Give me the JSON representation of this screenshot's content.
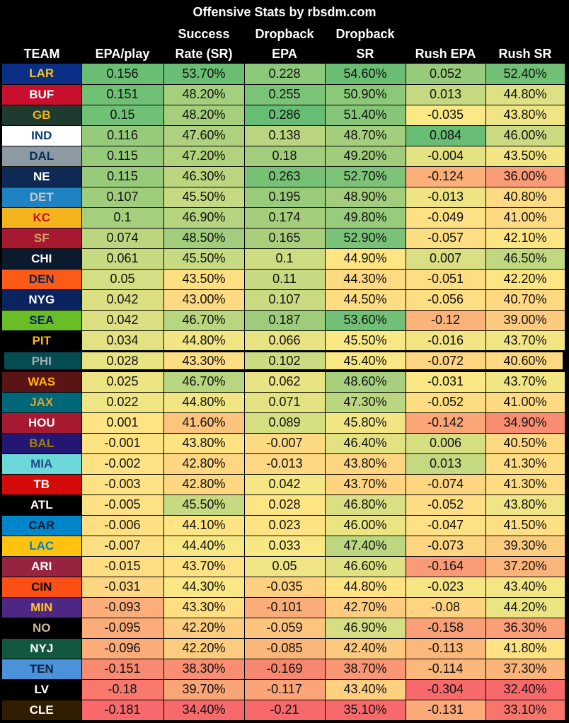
{
  "title": "Offensive Stats by rbsdm.com",
  "headers": [
    {
      "line1": "",
      "line2": "TEAM"
    },
    {
      "line1": "",
      "line2": "EPA/play"
    },
    {
      "line1": "Success",
      "line2": "Rate (SR)"
    },
    {
      "line1": "Dropback",
      "line2": "EPA"
    },
    {
      "line1": "Dropback",
      "line2": "SR"
    },
    {
      "line1": "",
      "line2": "Rush EPA"
    },
    {
      "line1": "",
      "line2": "Rush SR"
    }
  ],
  "highlighted_team": "PHI",
  "rows": [
    {
      "team": "LAR",
      "bg": "#0B2F86",
      "fg": "#F4C320",
      "cells": [
        "0.156",
        "53.70%",
        "0.228",
        "54.60%",
        "0.052",
        "52.40%"
      ],
      "colors": [
        "#6ABE74",
        "#6ABE74",
        "#8CC87A",
        "#6ABE74",
        "#97CB7B",
        "#72C076"
      ]
    },
    {
      "team": "BUF",
      "bg": "#C8102E",
      "fg": "#FFFFFF",
      "cells": [
        "0.151",
        "48.20%",
        "0.255",
        "50.90%",
        "0.013",
        "44.80%"
      ],
      "colors": [
        "#6FBF75",
        "#A6CF7D",
        "#7BC377",
        "#8BC87A",
        "#C5D981",
        "#DDE083"
      ]
    },
    {
      "team": "GB",
      "bg": "#1F3A2E",
      "fg": "#F4B41A",
      "cells": [
        "0.15",
        "48.20%",
        "0.286",
        "51.40%",
        "-0.035",
        "43.80%"
      ],
      "colors": [
        "#70C075",
        "#A6CF7D",
        "#67BD73",
        "#86C679",
        "#FBE985",
        "#F0E584"
      ]
    },
    {
      "team": "IND",
      "bg": "#FFFFFF",
      "fg": "#0B3B80",
      "cells": [
        "0.116",
        "47.60%",
        "0.138",
        "48.70%",
        "0.084",
        "46.00%"
      ],
      "colors": [
        "#96CB7B",
        "#ADD17E",
        "#B9D57F",
        "#A5CE7C",
        "#66BD73",
        "#C9DA81"
      ]
    },
    {
      "team": "DAL",
      "bg": "#8E9AA2",
      "fg": "#0B2F5E",
      "cells": [
        "0.115",
        "47.20%",
        "0.18",
        "49.20%",
        "-0.004",
        "43.50%"
      ],
      "colors": [
        "#97CB7B",
        "#B2D37E",
        "#A1CD7C",
        "#A0CC7C",
        "#E5E283",
        "#F2E684"
      ]
    },
    {
      "team": "NE",
      "bg": "#0E2A54",
      "fg": "#FFFFFF",
      "cells": [
        "0.115",
        "46.30%",
        "0.263",
        "52.70%",
        "-0.124",
        "36.00%"
      ],
      "colors": [
        "#97CB7B",
        "#BCD680",
        "#76C176",
        "#7DC377",
        "#FBB079",
        "#F99B76"
      ]
    },
    {
      "team": "DET",
      "bg": "#1F82C3",
      "fg": "#BFC7CE",
      "cells": [
        "0.107",
        "45.50%",
        "0.195",
        "48.90%",
        "-0.013",
        "40.80%"
      ],
      "colors": [
        "#9FCD7C",
        "#C6DA81",
        "#99CB7B",
        "#A3CD7C",
        "#EEE484",
        "#FEDB82"
      ]
    },
    {
      "team": "KC",
      "bg": "#F6B41C",
      "fg": "#C8102E",
      "cells": [
        "0.1",
        "46.90%",
        "0.174",
        "49.80%",
        "-0.049",
        "41.00%"
      ],
      "colors": [
        "#A6CF7D",
        "#B5D47F",
        "#A4CE7C",
        "#98CB7B",
        "#FDE184",
        "#FEDB82"
      ]
    },
    {
      "team": "SF",
      "bg": "#A71930",
      "fg": "#C9A565",
      "cells": [
        "0.074",
        "48.50%",
        "0.165",
        "52.90%",
        "-0.057",
        "42.10%"
      ],
      "colors": [
        "#BCD680",
        "#A2CD7C",
        "#A9CF7D",
        "#7AC277",
        "#FEDE83",
        "#FEE583"
      ]
    },
    {
      "team": "CHI",
      "bg": "#0C1A2E",
      "fg": "#FFFFFF",
      "cells": [
        "0.061",
        "45.50%",
        "0.1",
        "44.90%",
        "0.007",
        "46.50%"
      ],
      "colors": [
        "#C8DA81",
        "#C6DA81",
        "#CDDB81",
        "#FEE583",
        "#D9DF82",
        "#C2D880"
      ]
    },
    {
      "team": "DEN",
      "bg": "#FB5B17",
      "fg": "#0B2351",
      "cells": [
        "0.05",
        "43.50%",
        "0.11",
        "44.30%",
        "-0.051",
        "42.20%"
      ],
      "colors": [
        "#D4DE82",
        "#FEE083",
        "#C7DA81",
        "#FEDB82",
        "#FEDD83",
        "#FEE583"
      ]
    },
    {
      "team": "NYG",
      "bg": "#0B2460",
      "fg": "#FFFFFF",
      "cells": [
        "0.042",
        "43.00%",
        "0.107",
        "44.50%",
        "-0.056",
        "40.70%"
      ],
      "colors": [
        "#DCE083",
        "#FEDB82",
        "#C9DA81",
        "#FEDD83",
        "#FEDE83",
        "#FED982"
      ]
    },
    {
      "team": "SEA",
      "bg": "#69BE28",
      "fg": "#0B2351",
      "cells": [
        "0.042",
        "46.70%",
        "0.187",
        "53.60%",
        "-0.12",
        "39.00%"
      ],
      "colors": [
        "#DCE083",
        "#B8D57F",
        "#9ECC7C",
        "#71C076",
        "#FCB37A",
        "#FDCB7F"
      ]
    },
    {
      "team": "PIT",
      "bg": "#000000",
      "fg": "#FFB612",
      "cells": [
        "0.034",
        "44.80%",
        "0.066",
        "45.50%",
        "-0.016",
        "43.70%"
      ],
      "colors": [
        "#E3E283",
        "#F2E684",
        "#E7E383",
        "#F9E884",
        "#F2E684",
        "#F1E584"
      ]
    },
    {
      "team": "PHI",
      "bg": "#064C53",
      "fg": "#A5ACAF",
      "cells": [
        "0.028",
        "43.30%",
        "0.102",
        "45.40%",
        "-0.072",
        "40.60%"
      ],
      "colors": [
        "#E9E483",
        "#FEDE83",
        "#CCDB81",
        "#FAE884",
        "#FED581",
        "#FED982"
      ]
    },
    {
      "team": "WAS",
      "bg": "#5A1414",
      "fg": "#FFB612",
      "cells": [
        "0.025",
        "46.70%",
        "0.062",
        "48.60%",
        "-0.031",
        "43.70%"
      ],
      "colors": [
        "#ECE483",
        "#B8D57F",
        "#E9E483",
        "#A7CF7D",
        "#F9E884",
        "#F1E584"
      ]
    },
    {
      "team": "JAX",
      "bg": "#006778",
      "fg": "#D7A22A",
      "cells": [
        "0.022",
        "44.80%",
        "0.071",
        "47.30%",
        "-0.052",
        "41.00%"
      ],
      "colors": [
        "#EFE584",
        "#F2E684",
        "#E3E283",
        "#BBD680",
        "#FEDD83",
        "#FEDB82"
      ]
    },
    {
      "team": "HOU",
      "bg": "#A71930",
      "fg": "#FFFFFF",
      "cells": [
        "0.001",
        "41.60%",
        "0.089",
        "45.80%",
        "-0.142",
        "34.90%"
      ],
      "colors": [
        "#FEE483",
        "#FDC47D",
        "#D6DE82",
        "#F1E584",
        "#FBA677",
        "#F98D72"
      ]
    },
    {
      "team": "BAL",
      "bg": "#241773",
      "fg": "#9E7C0C",
      "cells": [
        "-0.001",
        "43.80%",
        "-0.007",
        "46.40%",
        "0.006",
        "40.50%"
      ],
      "colors": [
        "#FEE383",
        "#FEE383",
        "#FEDB82",
        "#E3E283",
        "#D6DE82",
        "#FED882"
      ]
    },
    {
      "team": "MIA",
      "bg": "#6CD8DA",
      "fg": "#1F4E8C",
      "cells": [
        "-0.002",
        "42.80%",
        "-0.013",
        "43.80%",
        "0.013",
        "41.30%"
      ],
      "colors": [
        "#FEE283",
        "#FED782",
        "#FED882",
        "#FED581",
        "#C5D981",
        "#FEDC82"
      ]
    },
    {
      "team": "TB",
      "bg": "#D50A0A",
      "fg": "#FFFFFF",
      "cells": [
        "-0.003",
        "42.80%",
        "0.042",
        "43.70%",
        "-0.074",
        "41.30%"
      ],
      "colors": [
        "#FEE283",
        "#FED782",
        "#F5E784",
        "#FED481",
        "#FED581",
        "#FEDC82"
      ]
    },
    {
      "team": "ATL",
      "bg": "#000000",
      "fg": "#FFFFFF",
      "cells": [
        "-0.005",
        "45.50%",
        "0.028",
        "46.80%",
        "-0.052",
        "43.80%"
      ],
      "colors": [
        "#FEE183",
        "#C6DA81",
        "#FEE583",
        "#D9DF82",
        "#FEDD83",
        "#F0E584"
      ]
    },
    {
      "team": "CAR",
      "bg": "#0085CA",
      "fg": "#0B1A2E",
      "cells": [
        "-0.006",
        "44.10%",
        "0.023",
        "46.00%",
        "-0.047",
        "41.50%"
      ],
      "colors": [
        "#FEE083",
        "#FEE483",
        "#FEE383",
        "#EBE483",
        "#FDE184",
        "#FEDF83"
      ]
    },
    {
      "team": "LAC",
      "bg": "#FFC20E",
      "fg": "#0080C6",
      "cells": [
        "-0.007",
        "44.40%",
        "0.033",
        "47.40%",
        "-0.073",
        "39.30%"
      ],
      "colors": [
        "#FEE083",
        "#F8E884",
        "#F8E884",
        "#BDD680",
        "#FED581",
        "#FDCD7F"
      ]
    },
    {
      "team": "ARI",
      "bg": "#97233F",
      "fg": "#FFFFFF",
      "cells": [
        "-0.015",
        "43.70%",
        "0.05",
        "46.60%",
        "-0.164",
        "37.20%"
      ],
      "colors": [
        "#FEDD83",
        "#FEE283",
        "#EFE584",
        "#DFE183",
        "#F99B76",
        "#FBB47A"
      ]
    },
    {
      "team": "CIN",
      "bg": "#FB4F14",
      "fg": "#000000",
      "cells": [
        "-0.031",
        "44.30%",
        "-0.035",
        "44.80%",
        "-0.023",
        "43.40%"
      ],
      "colors": [
        "#FDD782",
        "#FAE884",
        "#FDD17F",
        "#FEE383",
        "#F6E784",
        "#F3E684"
      ]
    },
    {
      "team": "MIN",
      "bg": "#4F2683",
      "fg": "#FFC62F",
      "cells": [
        "-0.093",
        "43.30%",
        "-0.101",
        "42.70%",
        "-0.08",
        "44.20%"
      ],
      "colors": [
        "#FBAE79",
        "#FEDE83",
        "#FBAD79",
        "#FDCC7F",
        "#FED481",
        "#EAE483"
      ]
    },
    {
      "team": "NO",
      "bg": "#000000",
      "fg": "#D3BC8D",
      "cells": [
        "-0.095",
        "42.20%",
        "-0.059",
        "46.90%",
        "-0.158",
        "36.30%"
      ],
      "colors": [
        "#FBAD79",
        "#FDCD7F",
        "#FDC47D",
        "#D5DE82",
        "#F9A076",
        "#FA9F76"
      ]
    },
    {
      "team": "NYJ",
      "bg": "#125740",
      "fg": "#FFFFFF",
      "cells": [
        "-0.096",
        "42.20%",
        "-0.085",
        "42.40%",
        "-0.113",
        "41.80%"
      ],
      "colors": [
        "#FBAC79",
        "#FDCD7F",
        "#FBB67A",
        "#FDC97E",
        "#FCB77B",
        "#FEE283"
      ]
    },
    {
      "team": "TEN",
      "bg": "#4B92DB",
      "fg": "#0C2340",
      "cells": [
        "-0.151",
        "38.30%",
        "-0.169",
        "38.70%",
        "-0.114",
        "37.30%"
      ],
      "colors": [
        "#F98A72",
        "#F98E73",
        "#F8876F",
        "#F99673",
        "#FCB77B",
        "#FBB57A"
      ]
    },
    {
      "team": "LV",
      "bg": "#000000",
      "fg": "#FFFFFF",
      "cells": [
        "-0.18",
        "39.70%",
        "-0.117",
        "43.40%",
        "-0.304",
        "32.40%"
      ],
      "colors": [
        "#F8786D",
        "#FAA577",
        "#FAA477",
        "#FDD180",
        "#F8696B",
        "#F8696B"
      ]
    },
    {
      "team": "CLE",
      "bg": "#311D00",
      "fg": "#FFFFFF",
      "cells": [
        "-0.181",
        "34.40%",
        "-0.21",
        "35.10%",
        "-0.131",
        "33.10%"
      ],
      "colors": [
        "#F8696B",
        "#F8696B",
        "#F8696B",
        "#F8696B",
        "#FBAA78",
        "#F8746D"
      ]
    }
  ]
}
